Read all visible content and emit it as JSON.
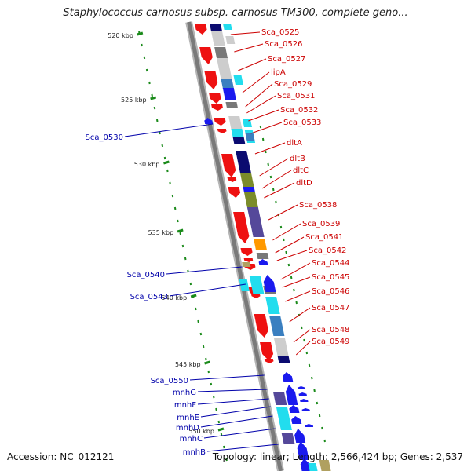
{
  "title": "Staphylococcus carnosus subsp. carnosus TM300, complete geno...",
  "footer": {
    "accession": "Accession: NC_012121",
    "topology": "Topology: linear; Length: 2,566,424 bp; Genes: 2,537"
  },
  "colors": {
    "red": "#ee1111",
    "blue": "#1a1aee",
    "label_red": "#cc0000",
    "label_blue": "#0000aa",
    "navy": "#0b0b70",
    "purple": "#55489a",
    "cyan": "#22ddee",
    "steel": "#3a7fc0",
    "gray": "#787878",
    "lightgray": "#cdcdcd",
    "olive": "#7b8c2a",
    "orange": "#ff9900",
    "tan": "#b0a060",
    "tick": "#1a8a1a"
  },
  "ticks": [
    {
      "label": "520 kbp"
    },
    {
      "label": "525 kbp"
    },
    {
      "label": "530 kbp"
    },
    {
      "label": "535 kbp"
    },
    {
      "label": "540 kbp"
    },
    {
      "label": "545 kbp"
    },
    {
      "label": "550 kbp"
    }
  ],
  "labels_right": [
    "Sca_0525",
    "Sca_0526",
    "Sca_0527",
    "lipA",
    "Sca_0529",
    "Sca_0531",
    "Sca_0532",
    "Sca_0533",
    "dltA",
    "dltB",
    "dltC",
    "dltD",
    "Sca_0538",
    "Sca_0539",
    "Sca_0541",
    "Sca_0542",
    "Sca_0544",
    "Sca_0545",
    "Sca_0546",
    "Sca_0547",
    "Sca_0548",
    "Sca_0549"
  ],
  "labels_left": [
    "Sca_0530",
    "Sca_0540",
    "Sca_0543",
    "Sca_0550",
    "mnhG",
    "mnhF",
    "mnhE",
    "mnhD",
    "mnhC",
    "mnhB"
  ]
}
